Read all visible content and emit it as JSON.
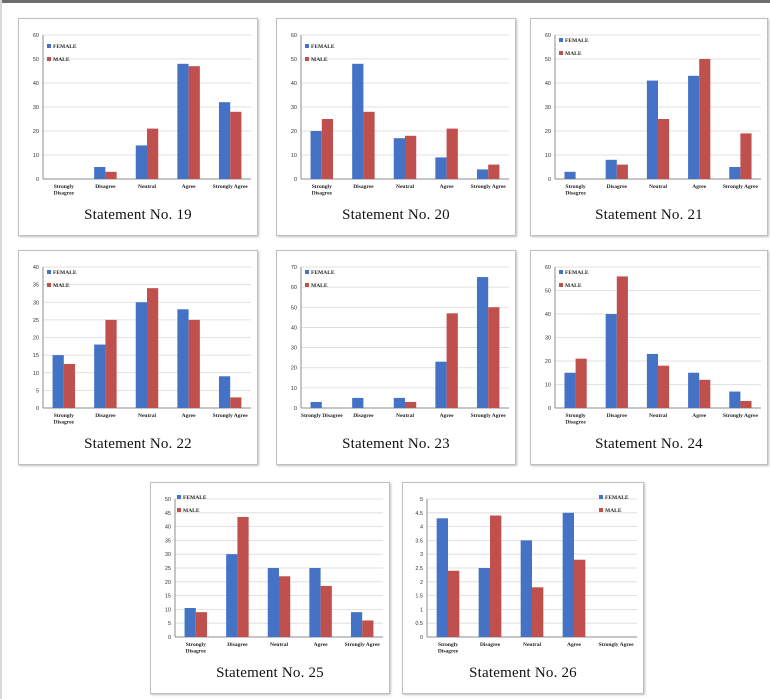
{
  "colors": {
    "female": "#4472c4",
    "male": "#c0504d",
    "grid": "#d9d9d9",
    "axis": "#8c8c8c"
  },
  "chart_data": [
    {
      "type": "bar",
      "title": "Statement No. 19",
      "categories": [
        "Strongly Disagree",
        "Disagree",
        "Neutral",
        "Agree",
        "Strongly Agree"
      ],
      "series": [
        {
          "name": "FEMALE",
          "values": [
            0,
            5,
            14,
            48,
            32
          ]
        },
        {
          "name": "MALE",
          "values": [
            0,
            3,
            21,
            47,
            28
          ]
        }
      ],
      "ylim": [
        0,
        60
      ],
      "yticks": [
        0,
        10,
        20,
        30,
        40,
        50,
        60
      ],
      "grid": true,
      "legend": "top-left"
    },
    {
      "type": "bar",
      "title": "Statement No. 20",
      "categories": [
        "Strongly Disagree",
        "Disagree",
        "Neutral",
        "Agree",
        "Strongly Agree"
      ],
      "series": [
        {
          "name": "FEMALE",
          "values": [
            20,
            48,
            17,
            9,
            4
          ]
        },
        {
          "name": "MALE",
          "values": [
            25,
            28,
            18,
            21,
            6
          ]
        }
      ],
      "ylim": [
        0,
        60
      ],
      "yticks": [
        0,
        10,
        20,
        30,
        40,
        50,
        60
      ],
      "grid": true,
      "legend": "top-left"
    },
    {
      "type": "bar",
      "title": "Statement No. 21",
      "categories": [
        "Strongly Disagree",
        "Disagree",
        "Neutral",
        "Agree",
        "Strongly Agree"
      ],
      "series": [
        {
          "name": "FEMALE",
          "values": [
            3,
            8,
            41,
            43,
            5
          ]
        },
        {
          "name": "MALE",
          "values": [
            0,
            6,
            25,
            50,
            19
          ]
        }
      ],
      "ylim": [
        0,
        60
      ],
      "yticks": [
        0,
        10,
        20,
        30,
        40,
        50,
        60
      ],
      "grid": true,
      "legend": "top-left"
    },
    {
      "type": "bar",
      "title": "Statement No. 22",
      "categories": [
        "Strongly Disagree",
        "Disagree",
        "Neutral",
        "Agree",
        "Strongly Agree"
      ],
      "series": [
        {
          "name": "FEMALE",
          "values": [
            15,
            18,
            30,
            28,
            9
          ]
        },
        {
          "name": "MALE",
          "values": [
            12.5,
            25,
            34,
            25,
            3
          ]
        }
      ],
      "ylim": [
        0,
        40
      ],
      "yticks": [
        0,
        5,
        10,
        15,
        20,
        25,
        30,
        35,
        40
      ],
      "grid": true,
      "legend": "top-left"
    },
    {
      "type": "bar",
      "title": "Statement No. 23",
      "categories": [
        "Strongly Disagree",
        "Disagree",
        "Neutral",
        "Agree",
        "Strongly Agree"
      ],
      "series": [
        {
          "name": "FEMALE",
          "values": [
            3,
            5,
            5,
            23,
            65
          ]
        },
        {
          "name": "MALE",
          "values": [
            0,
            0,
            3,
            47,
            50
          ]
        }
      ],
      "ylim": [
        0,
        70
      ],
      "yticks": [
        0,
        10,
        20,
        30,
        40,
        50,
        60,
        70
      ],
      "grid": true,
      "legend": "top-left"
    },
    {
      "type": "bar",
      "title": "Statement No. 24",
      "categories": [
        "Strongly Disagree",
        "Disagree",
        "Neutral",
        "Agree",
        "Strongly Agree"
      ],
      "series": [
        {
          "name": "FEMALE",
          "values": [
            15,
            40,
            23,
            15,
            7
          ]
        },
        {
          "name": "MALE",
          "values": [
            21,
            56,
            18,
            12,
            3
          ]
        }
      ],
      "ylim": [
        0,
        60
      ],
      "yticks": [
        0,
        10,
        20,
        30,
        40,
        50,
        60
      ],
      "grid": true,
      "legend": "top-left"
    },
    {
      "type": "bar",
      "title": "Statement No. 25",
      "categories": [
        "Strongly Disagree",
        "Disagree",
        "Neutral",
        "Agree",
        "Strongly Agree"
      ],
      "series": [
        {
          "name": "FEMALE",
          "values": [
            10.5,
            30,
            25,
            25,
            9
          ]
        },
        {
          "name": "MALE",
          "values": [
            9,
            43.5,
            22,
            18.5,
            6
          ]
        }
      ],
      "ylim": [
        0,
        50
      ],
      "yticks": [
        0,
        5,
        10,
        15,
        20,
        25,
        30,
        35,
        40,
        45,
        50
      ],
      "grid": true,
      "legend": "top-center"
    },
    {
      "type": "bar",
      "title": "Statement No. 26",
      "categories": [
        "Strongly Disagree",
        "Disagree",
        "Neutral",
        "Agree",
        "Strongly Agree"
      ],
      "series": [
        {
          "name": "FEMALE",
          "values": [
            4.3,
            2.5,
            3.5,
            4.5,
            0
          ]
        },
        {
          "name": "MALE",
          "values": [
            2.4,
            4.4,
            1.8,
            2.8,
            0
          ]
        }
      ],
      "ylim": [
        0,
        5
      ],
      "yticks": [
        0,
        0.5,
        1,
        1.5,
        2,
        2.5,
        3,
        3.5,
        4,
        4.5,
        5
      ],
      "grid": true,
      "legend": "top-right"
    }
  ]
}
